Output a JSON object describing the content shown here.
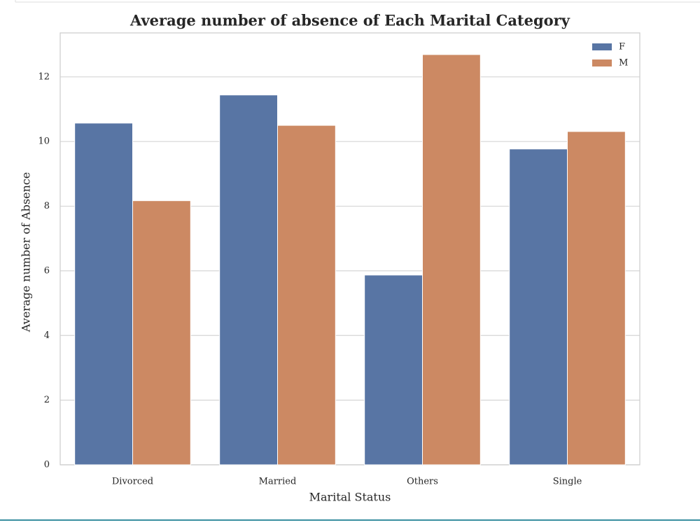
{
  "chart_data": {
    "type": "bar",
    "title": "Average number of absence of Each Marital Category",
    "x_label": "Marital Status",
    "y_label": "Average number of Absence",
    "categories": [
      "Divorced",
      "Married",
      "Others",
      "Single"
    ],
    "series": [
      {
        "name": "F",
        "color": "#5875a4",
        "values": [
          10.57,
          11.44,
          5.87,
          9.77
        ]
      },
      {
        "name": "M",
        "color": "#cc8963",
        "values": [
          8.17,
          10.5,
          12.69,
          10.31
        ]
      }
    ],
    "ylim": [
      0,
      13.36
    ],
    "yticks": [
      0,
      2,
      4,
      6,
      8,
      10,
      12
    ],
    "grid": true,
    "legend": "upper right"
  }
}
